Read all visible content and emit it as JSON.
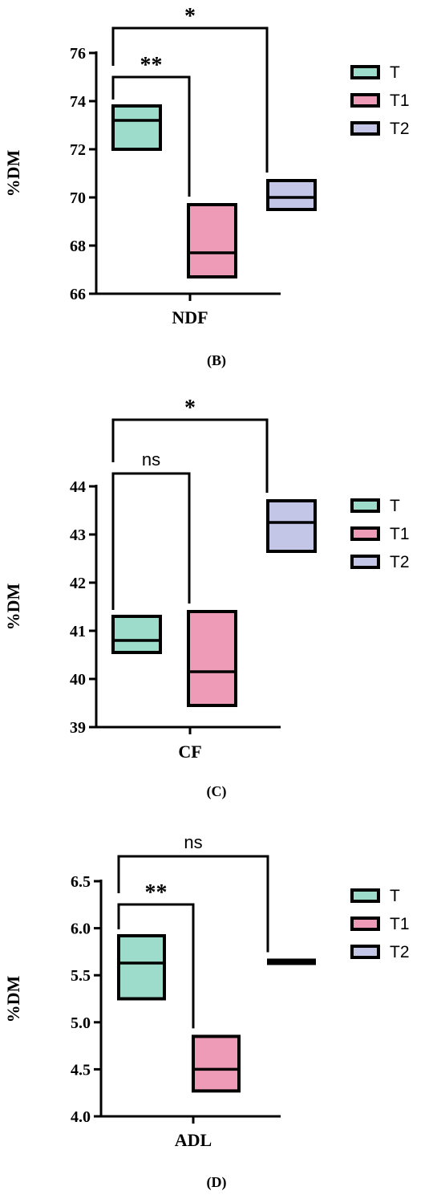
{
  "chart_data": [
    {
      "type": "box",
      "panel_label": "(B)",
      "xlabel": "NDF",
      "ylabel": "%DM",
      "ylim": [
        66,
        76
      ],
      "yticks": [
        "66",
        "68",
        "70",
        "72",
        "74",
        "76"
      ],
      "legend_position": "right",
      "series": [
        {
          "name": "T",
          "min": 72.0,
          "median": 73.2,
          "max": 73.8
        },
        {
          "name": "T1",
          "min": 66.7,
          "median": 67.7,
          "max": 69.7
        },
        {
          "name": "T2",
          "min": 69.5,
          "median": 70.0,
          "max": 70.7
        }
      ],
      "brackets": [
        {
          "from": "T",
          "to": "T1",
          "label": "**",
          "level": 1
        },
        {
          "from": "T",
          "to": "T2",
          "label": "*",
          "level": 2
        }
      ]
    },
    {
      "type": "box",
      "panel_label": "(C)",
      "xlabel": "CF",
      "ylabel": "%DM",
      "ylim": [
        39,
        44
      ],
      "yticks": [
        "39",
        "40",
        "41",
        "42",
        "43",
        "44"
      ],
      "legend_position": "right",
      "series": [
        {
          "name": "T",
          "min": 40.55,
          "median": 40.8,
          "max": 41.3
        },
        {
          "name": "T1",
          "min": 39.45,
          "median": 40.15,
          "max": 41.4
        },
        {
          "name": "T2",
          "min": 42.65,
          "median": 43.25,
          "max": 43.7
        }
      ],
      "brackets": [
        {
          "from": "T",
          "to": "T1",
          "label": "ns",
          "level": 1
        },
        {
          "from": "T",
          "to": "T2",
          "label": "*",
          "level": 2
        }
      ]
    },
    {
      "type": "box",
      "panel_label": "(D)",
      "xlabel": "ADL",
      "ylabel": "%DM",
      "ylim": [
        4.0,
        6.5
      ],
      "yticks": [
        "4.0",
        "4.5",
        "5.0",
        "5.5",
        "6.0",
        "6.5"
      ],
      "legend_position": "right",
      "series": [
        {
          "name": "T",
          "min": 5.25,
          "median": 5.63,
          "max": 5.92
        },
        {
          "name": "T1",
          "min": 4.27,
          "median": 4.5,
          "max": 4.85
        },
        {
          "name": "T2",
          "min": 5.63,
          "median": 5.645,
          "max": 5.66
        }
      ],
      "brackets": [
        {
          "from": "T",
          "to": "T1",
          "label": "**",
          "level": 1
        },
        {
          "from": "T",
          "to": "T2",
          "label": "ns",
          "level": 2
        }
      ]
    }
  ],
  "colors": {
    "T": "#9ddccb",
    "T1": "#ee9bb8",
    "T2": "#c3c6e6",
    "stroke": "#000000"
  }
}
